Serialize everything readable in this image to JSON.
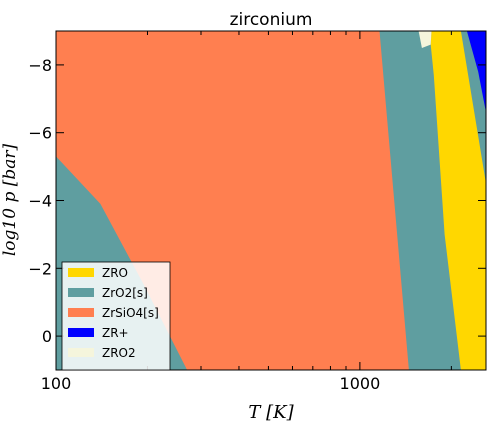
{
  "chart_data": {
    "type": "area",
    "title": "zirconium",
    "xlabel": "T [K]",
    "ylabel": "log10 p [bar]",
    "x_scale": "log",
    "xlim": [
      100,
      2600
    ],
    "ylim": [
      1,
      -9
    ],
    "x_ticks": [
      100,
      1000
    ],
    "x_tick_labels": [
      "100",
      "1000"
    ],
    "y_ticks": [
      -8,
      -6,
      -4,
      -2,
      0
    ],
    "y_tick_labels": [
      "−8",
      "−6",
      "−4",
      "−2",
      "0"
    ],
    "legend_location": "lower-left",
    "series": [
      {
        "name": "ZRO",
        "color": "#ffd700"
      },
      {
        "name": "ZrO2[s]",
        "color": "#5f9ea0"
      },
      {
        "name": "ZrSiO4[s]",
        "color": "#ff7f50"
      },
      {
        "name": "ZR+",
        "color": "#0000ff"
      },
      {
        "name": "ZRO2",
        "color": "#f5f5dc"
      }
    ],
    "regions": [
      {
        "name": "ZrO2[s]",
        "points": [
          [
            100,
            1
          ],
          [
            100,
            -9
          ],
          [
            2600,
            -9
          ],
          [
            2600,
            1
          ]
        ]
      },
      {
        "name": "ZrSiO4[s]",
        "points": [
          [
            100,
            -9
          ],
          [
            1160,
            -9
          ],
          [
            1440,
            1
          ],
          [
            270,
            1
          ],
          [
            195,
            -1.5
          ],
          [
            140,
            -3.9
          ],
          [
            100,
            0.53
          ]
        ]
      },
      {
        "name": "ZrSiO4[s] upper",
        "points": [
          [
            100,
            -9
          ],
          [
            1160,
            -9
          ],
          [
            1450,
            1
          ],
          [
            270,
            1
          ],
          [
            195,
            -1.5
          ],
          [
            140,
            -3.9
          ],
          [
            100,
            -5.3
          ]
        ]
      },
      {
        "name": "ZRO",
        "points": [
          [
            1720,
            -9
          ],
          [
            2150,
            -9
          ],
          [
            2600,
            -4.5
          ],
          [
            2600,
            1
          ],
          [
            2150,
            1
          ],
          [
            1900,
            -3
          ],
          [
            1750,
            -7.7
          ],
          [
            1710,
            -8.6
          ]
        ]
      },
      {
        "name": "ZR+",
        "points": [
          [
            2250,
            -9
          ],
          [
            2600,
            -9
          ],
          [
            2600,
            -6.6
          ],
          [
            2450,
            -7.8
          ]
        ]
      },
      {
        "name": "ZRO2",
        "points": [
          [
            1560,
            -9
          ],
          [
            1720,
            -9
          ],
          [
            1710,
            -8.6
          ],
          [
            1600,
            -8.5
          ]
        ]
      }
    ]
  }
}
